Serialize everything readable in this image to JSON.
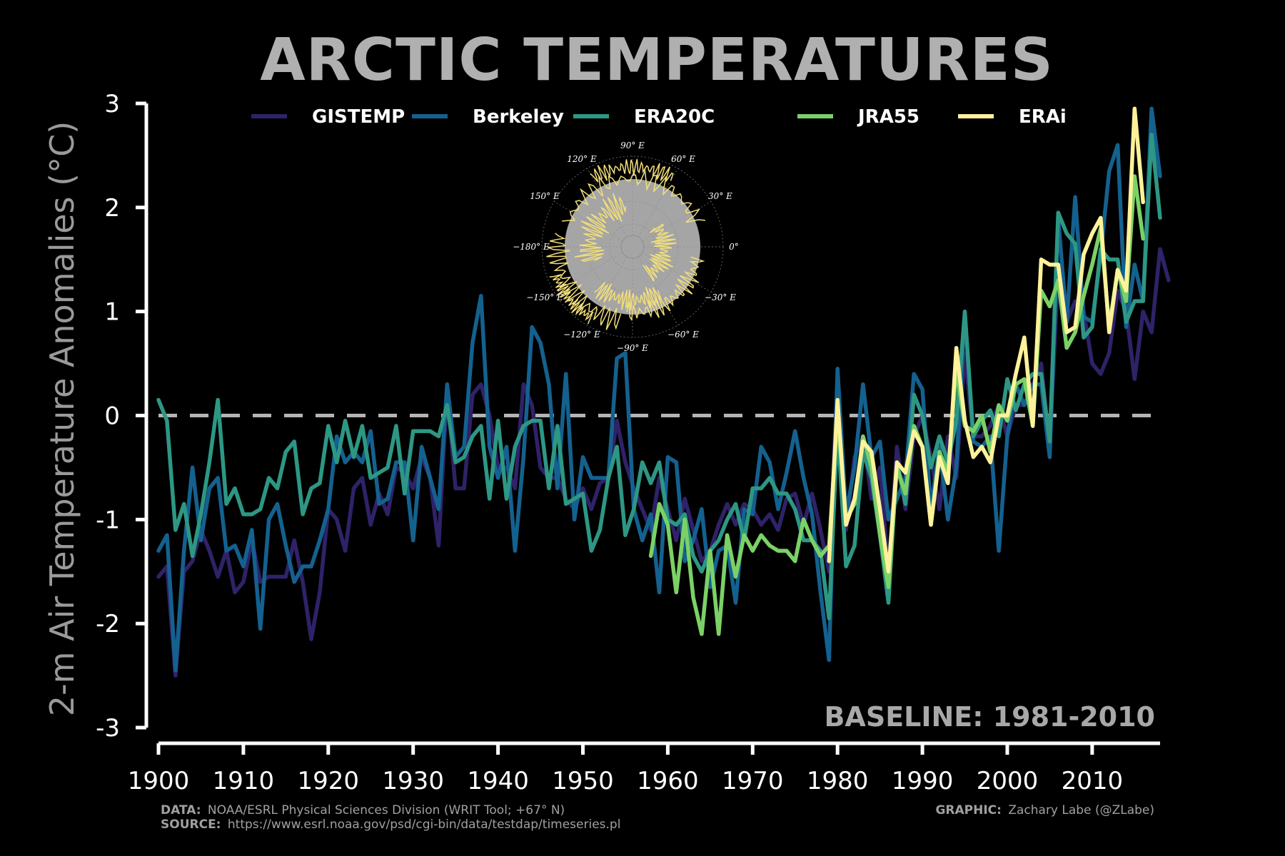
{
  "colors": {
    "GISTEMP": "#2f2268",
    "Berkeley": "#14618f",
    "ERA20C": "#2d9784",
    "JRA55": "#7bd166",
    "ERAi": "#fff29a",
    "baseline": "#b5b5b5",
    "axis": "#ffffff",
    "map_disc": "#a5a5a5",
    "map_coast": "#f2df7a"
  },
  "credits": {
    "data_key": "DATA:",
    "data_text": "NOAA/ESRL Physical Sciences Division (WRIT Tool; +67° N)",
    "source_key": "SOURCE:",
    "source_text": "https://www.esrl.noaa.gov/psd/cgi-bin/data/testdap/timeseries.pl",
    "graphic_key": "GRAPHIC:",
    "graphic_text": "Zachary Labe (@ZLabe)"
  },
  "inset_map": {
    "icon": "arctic-polar-map-icon",
    "labels": [
      "90° E",
      "60° E",
      "30° E",
      "0°",
      "−30° E",
      "−60° E",
      "−90° E",
      "−120° E",
      "−150° E",
      "−180° E",
      "150° E",
      "120° E"
    ]
  },
  "chart_data": {
    "type": "line",
    "title": "ARCTIC TEMPERATURES",
    "ylabel": "2-m Air Temperature Anomalies (°C)",
    "xlabel": "",
    "xlim": [
      1900,
      2018
    ],
    "ylim": [
      -3,
      3
    ],
    "xticks": [
      1900,
      1910,
      1920,
      1930,
      1940,
      1950,
      1960,
      1970,
      1980,
      1990,
      2000,
      2010
    ],
    "yticks": [
      -3,
      -2,
      -1,
      0,
      1,
      2,
      3
    ],
    "ytick_labels": [
      "-3",
      "-2",
      "-1",
      "0",
      "1",
      "2",
      "3"
    ],
    "legend_position": "top",
    "grid": false,
    "baseline_label": "BASELINE: 1981-2010",
    "baseline_value": 0,
    "series": [
      {
        "name": "GISTEMP",
        "start_year": 1900,
        "values": [
          -1.55,
          -1.45,
          -2.5,
          -1.5,
          -1.4,
          -1.1,
          -1.3,
          -1.55,
          -1.3,
          -1.7,
          -1.6,
          -1.2,
          -1.6,
          -1.55,
          -1.55,
          -1.55,
          -1.2,
          -1.6,
          -2.15,
          -1.7,
          -0.9,
          -1.0,
          -1.3,
          -0.7,
          -0.6,
          -1.05,
          -0.75,
          -0.95,
          -0.5,
          -0.55,
          -0.7,
          -0.4,
          -0.6,
          -1.25,
          0.25,
          -0.7,
          -0.7,
          0.2,
          0.3,
          0.0,
          -0.5,
          -0.5,
          -0.7,
          0.3,
          0.1,
          -0.5,
          -0.6,
          -0.6,
          -0.8,
          -0.9,
          -0.7,
          -0.9,
          -0.65,
          -0.6,
          -0.05,
          -0.45,
          -0.7,
          -0.9,
          -1.1,
          -0.6,
          -0.9,
          -1.2,
          -0.8,
          -1.1,
          -1.4,
          -1.3,
          -1.05,
          -0.85,
          -1.05,
          -0.85,
          -0.9,
          -1.05,
          -0.95,
          -1.1,
          -0.8,
          -0.75,
          -1.05,
          -0.75,
          -1.1,
          -1.5,
          0.4,
          -1.1,
          -0.4,
          -0.2,
          -0.8,
          -0.5,
          -1.5,
          -0.3,
          -0.9,
          -0.2,
          0.0,
          -0.4,
          -0.9,
          -0.2,
          -0.6,
          0.6,
          -0.2,
          -0.2,
          -0.1,
          0.1,
          -0.2,
          0.1,
          0.1,
          0.3,
          0.5,
          -0.3,
          1.4,
          0.9,
          1.1,
          1.0,
          0.5,
          0.4,
          0.6,
          1.2,
          1.0,
          0.35,
          1.0,
          0.8,
          1.6,
          1.3
        ]
      },
      {
        "name": "Berkeley",
        "start_year": 1900,
        "values": [
          -1.3,
          -1.15,
          -2.45,
          -1.3,
          -0.5,
          -1.2,
          -0.7,
          -0.6,
          -1.3,
          -1.25,
          -1.45,
          -1.1,
          -2.05,
          -1.0,
          -0.85,
          -1.25,
          -1.6,
          -1.45,
          -1.45,
          -1.2,
          -0.9,
          -0.2,
          -0.45,
          -0.35,
          -0.45,
          -0.15,
          -0.85,
          -0.8,
          -0.45,
          -0.45,
          -1.2,
          -0.3,
          -0.6,
          -0.9,
          0.3,
          -0.4,
          -0.3,
          0.7,
          1.15,
          -0.3,
          -0.6,
          -0.3,
          -1.3,
          -0.4,
          0.85,
          0.7,
          0.3,
          -0.7,
          0.4,
          -1.0,
          -0.4,
          -0.6,
          -0.6,
          -0.6,
          0.55,
          0.6,
          -0.9,
          -1.2,
          -0.95,
          -1.7,
          -0.4,
          -0.45,
          -1.4,
          -1.2,
          -0.9,
          -1.65,
          -1.3,
          -1.25,
          -1.8,
          -0.9,
          -0.95,
          -0.3,
          -0.45,
          -0.9,
          -0.55,
          -0.15,
          -0.6,
          -0.95,
          -1.7,
          -2.35,
          0.45,
          -0.95,
          -0.5,
          0.3,
          -0.4,
          -0.25,
          -1.0,
          -0.8,
          -0.6,
          0.4,
          0.25,
          -0.9,
          -0.3,
          -1.0,
          -0.5,
          1.0,
          -0.25,
          -0.3,
          -0.2,
          -1.3,
          -0.2,
          0.3,
          0.1,
          0.3,
          0.3,
          -0.4,
          1.9,
          0.9,
          2.1,
          0.95,
          0.9,
          1.55,
          2.35,
          2.6,
          0.85,
          1.45,
          1.1,
          2.95,
          2.3
        ]
      },
      {
        "name": "ERA20C",
        "start_year": 1900,
        "values": [
          0.15,
          -0.05,
          -1.1,
          -0.85,
          -1.35,
          -0.95,
          -0.45,
          0.15,
          -0.85,
          -0.7,
          -0.95,
          -0.95,
          -0.9,
          -0.6,
          -0.7,
          -0.35,
          -0.25,
          -0.95,
          -0.7,
          -0.65,
          -0.1,
          -0.45,
          -0.05,
          -0.4,
          -0.1,
          -0.6,
          -0.55,
          -0.5,
          -0.1,
          -0.75,
          -0.15,
          -0.15,
          -0.15,
          -0.2,
          0.1,
          -0.45,
          -0.4,
          -0.2,
          -0.1,
          -0.8,
          -0.05,
          -0.8,
          -0.3,
          -0.1,
          -0.05,
          -0.05,
          -0.7,
          -0.1,
          -0.85,
          -0.8,
          -0.75,
          -1.3,
          -1.1,
          -0.6,
          -0.3,
          -1.15,
          -0.9,
          -0.45,
          -0.65,
          -0.45,
          -1.0,
          -1.05,
          -0.95,
          -1.35,
          -1.5,
          -1.3,
          -1.2,
          -1.0,
          -0.85,
          -1.2,
          -0.7,
          -0.7,
          -0.6,
          -0.75,
          -0.75,
          -0.9,
          -1.2,
          -1.2,
          -1.3,
          -1.95,
          -0.1,
          -1.45,
          -1.25,
          -0.35,
          -0.6,
          -1.15,
          -1.8,
          -0.45,
          -0.85,
          0.2,
          0.0,
          -0.5,
          -0.2,
          -0.45,
          -0.05,
          1.0,
          -0.2,
          -0.05,
          0.05,
          -0.2,
          0.35,
          0.05,
          0.3,
          0.4,
          0.4,
          -0.25,
          1.95,
          1.75,
          1.65,
          0.75,
          0.85,
          1.6,
          1.5,
          1.5,
          0.9,
          1.1,
          1.1,
          2.7,
          1.9
        ]
      },
      {
        "name": "JRA55",
        "start_year": 1958,
        "values": [
          -1.35,
          -0.85,
          -1.05,
          -1.7,
          -1.0,
          -1.75,
          -2.1,
          -1.3,
          -2.1,
          -1.15,
          -1.55,
          -1.15,
          -1.3,
          -1.15,
          -1.25,
          -1.3,
          -1.3,
          -1.4,
          -1.0,
          -1.2,
          -1.35,
          -1.25,
          0.0,
          -1.0,
          -0.85,
          -0.2,
          -0.5,
          -1.15,
          -1.65,
          -0.5,
          -0.75,
          -0.1,
          -0.3,
          -1.05,
          -0.35,
          -0.55,
          0.45,
          -0.1,
          -0.15,
          0.0,
          -0.35,
          0.1,
          -0.05,
          0.3,
          0.35,
          -0.1,
          1.2,
          1.05,
          1.3,
          0.65,
          0.8,
          1.15,
          1.45,
          1.8,
          0.85,
          1.4,
          1.1,
          2.3,
          1.7
        ]
      },
      {
        "name": "ERAi",
        "start_year": 1979,
        "values": [
          -1.4,
          0.15,
          -1.05,
          -0.8,
          -0.25,
          -0.35,
          -0.9,
          -1.5,
          -0.45,
          -0.55,
          -0.15,
          -0.3,
          -1.05,
          -0.4,
          -0.65,
          0.65,
          -0.05,
          -0.4,
          -0.3,
          -0.45,
          0.0,
          0.0,
          0.4,
          0.75,
          -0.1,
          1.5,
          1.45,
          1.45,
          0.8,
          0.85,
          1.55,
          1.75,
          1.9,
          0.8,
          1.4,
          1.2,
          2.95,
          2.05
        ]
      }
    ]
  }
}
